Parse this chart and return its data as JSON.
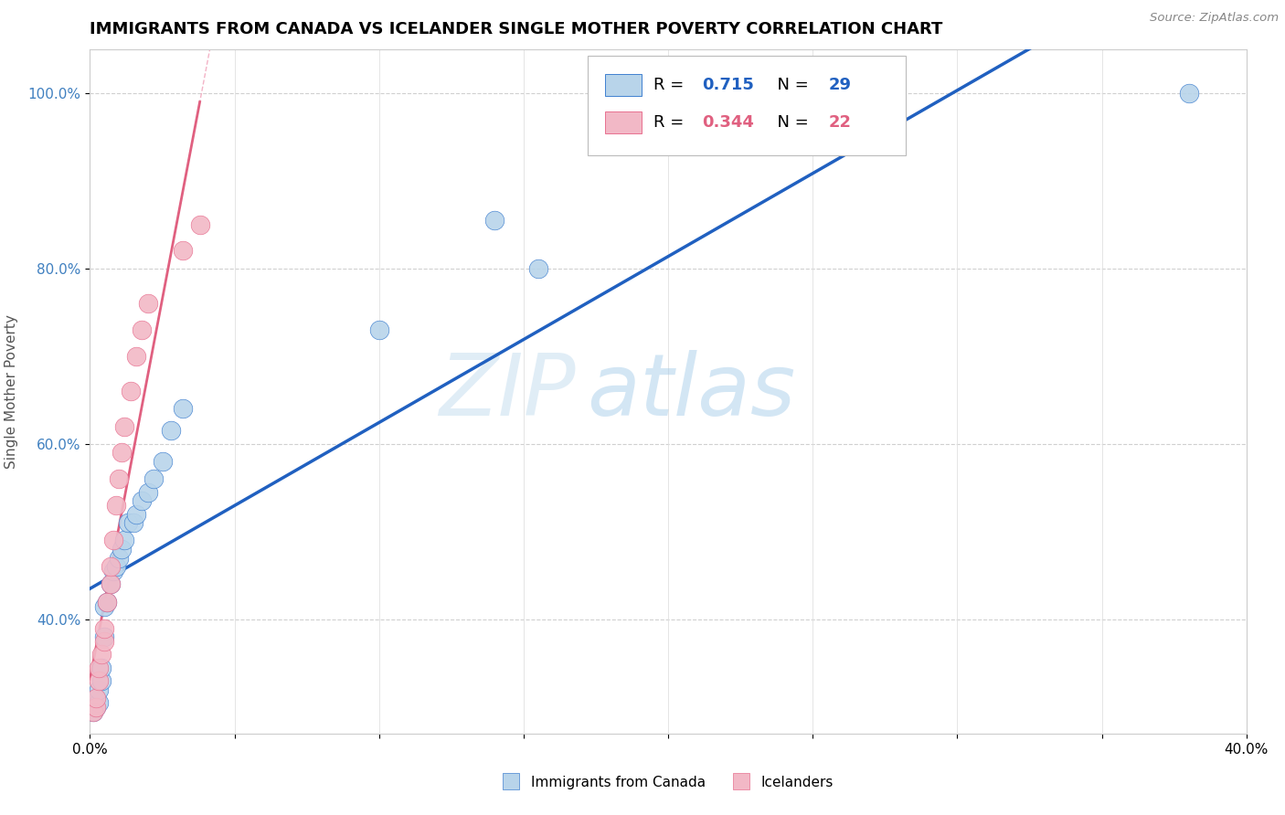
{
  "title": "IMMIGRANTS FROM CANADA VS ICELANDER SINGLE MOTHER POVERTY CORRELATION CHART",
  "source": "Source: ZipAtlas.com",
  "ylabel": "Single Mother Poverty",
  "legend_blue_label": "Immigrants from Canada",
  "legend_pink_label": "Icelanders",
  "blue_R": 0.715,
  "blue_N": 29,
  "pink_R": 0.344,
  "pink_N": 22,
  "blue_color": "#b8d4ea",
  "pink_color": "#f2b8c6",
  "blue_line_color": "#2060c0",
  "pink_line_color": "#e06080",
  "blue_dot_edge": "#4080d0",
  "pink_dot_edge": "#e87090",
  "watermark_zip": "ZIP",
  "watermark_atlas": "atlas",
  "blue_x": [
    0.001,
    0.002,
    0.002,
    0.003,
    0.003,
    0.004,
    0.004,
    0.005,
    0.005,
    0.006,
    0.007,
    0.008,
    0.009,
    0.01,
    0.011,
    0.012,
    0.013,
    0.015,
    0.016,
    0.018,
    0.02,
    0.022,
    0.025,
    0.028,
    0.032,
    0.1,
    0.14,
    0.155,
    0.38
  ],
  "blue_y": [
    0.295,
    0.3,
    0.31,
    0.305,
    0.32,
    0.33,
    0.345,
    0.38,
    0.415,
    0.42,
    0.44,
    0.455,
    0.46,
    0.47,
    0.48,
    0.49,
    0.51,
    0.51,
    0.52,
    0.535,
    0.545,
    0.56,
    0.58,
    0.615,
    0.64,
    0.73,
    0.855,
    0.8,
    1.0
  ],
  "pink_x": [
    0.001,
    0.002,
    0.002,
    0.003,
    0.003,
    0.004,
    0.005,
    0.005,
    0.006,
    0.007,
    0.007,
    0.008,
    0.009,
    0.01,
    0.011,
    0.012,
    0.014,
    0.016,
    0.018,
    0.02,
    0.032,
    0.038
  ],
  "pink_y": [
    0.295,
    0.3,
    0.31,
    0.33,
    0.345,
    0.36,
    0.375,
    0.39,
    0.42,
    0.44,
    0.46,
    0.49,
    0.53,
    0.56,
    0.59,
    0.62,
    0.66,
    0.7,
    0.73,
    0.76,
    0.82,
    0.85
  ],
  "xlim": [
    0.0,
    0.4
  ],
  "ylim": [
    0.27,
    1.05
  ],
  "yticks": [
    0.4,
    0.6,
    0.8,
    1.0
  ],
  "ytick_labels": [
    "40.0%",
    "60.0%",
    "80.0%",
    "100.0%"
  ],
  "xticks": [
    0.0,
    0.05,
    0.1,
    0.15,
    0.2,
    0.25,
    0.3,
    0.35,
    0.4
  ],
  "xtick_labels": [
    "0.0%",
    "",
    "",
    "",
    "",
    "",
    "",
    "",
    "40.0%"
  ]
}
